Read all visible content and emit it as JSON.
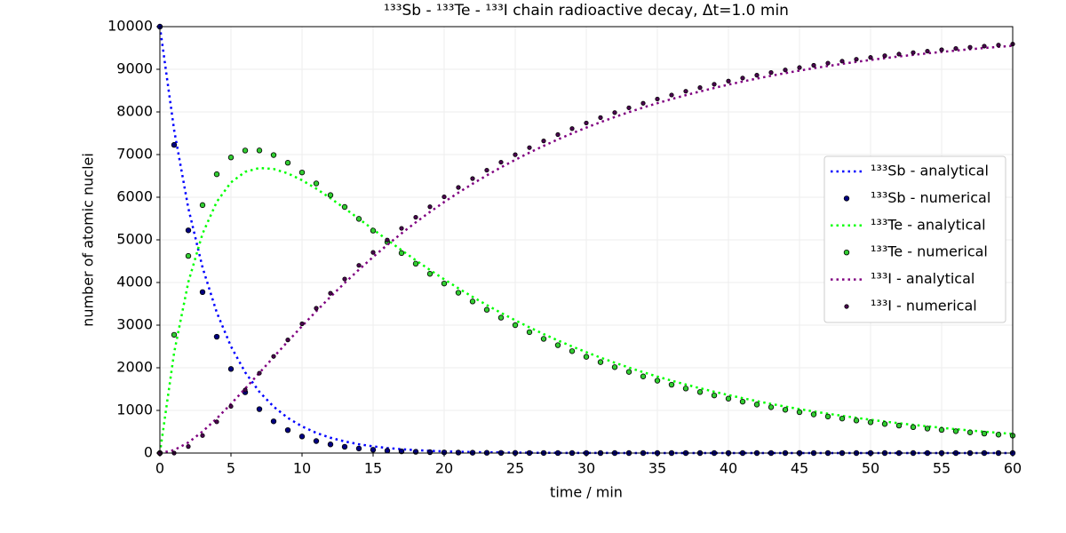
{
  "chart_data": {
    "type": "line",
    "title": "¹³³Sb - ¹³³Te - ¹³³I chain radioactive decay, Δt=1.0 min",
    "xlabel": "time / min",
    "ylabel": "number of atomic nuclei",
    "xlim": [
      0,
      60
    ],
    "ylim": [
      0,
      10000
    ],
    "xticks": [
      0,
      5,
      10,
      15,
      20,
      25,
      30,
      35,
      40,
      45,
      50,
      55,
      60
    ],
    "yticks": [
      0,
      1000,
      2000,
      3000,
      4000,
      5000,
      6000,
      7000,
      8000,
      9000,
      10000
    ],
    "grid": true,
    "legend": "right",
    "x": [
      0,
      1,
      2,
      3,
      4,
      5,
      6,
      7,
      8,
      9,
      10,
      11,
      12,
      13,
      14,
      15,
      16,
      17,
      18,
      19,
      20,
      21,
      22,
      23,
      24,
      25,
      26,
      27,
      28,
      29,
      30,
      31,
      32,
      33,
      34,
      35,
      36,
      37,
      38,
      39,
      40,
      41,
      42,
      43,
      44,
      45,
      46,
      47,
      48,
      49,
      50,
      51,
      52,
      53,
      54,
      55,
      56,
      57,
      58,
      59,
      60
    ],
    "series": [
      {
        "name": "¹³³Sb - analytical",
        "kind": "line",
        "color": "#0000ff",
        "values": [
          10000,
          7578,
          5743,
          4352,
          3298,
          2500,
          1894,
          1435,
          1088,
          824,
          625,
          473,
          359,
          272,
          206,
          156,
          118,
          90,
          68,
          52,
          39,
          30,
          22,
          17,
          13,
          10,
          7,
          6,
          4,
          3,
          2,
          2,
          1,
          1,
          1,
          1,
          0,
          0,
          0,
          0,
          0,
          0,
          0,
          0,
          0,
          0,
          0,
          0,
          0,
          0,
          0,
          0,
          0,
          0,
          0,
          0,
          0,
          0,
          0,
          0,
          0
        ]
      },
      {
        "name": "¹³³Sb - numerical",
        "kind": "scatter",
        "color": "#000080",
        "values": [
          10000,
          7227,
          5223,
          3775,
          2728,
          1972,
          1425,
          1030,
          744,
          538,
          389,
          281,
          203,
          147,
          106,
          77,
          55,
          40,
          29,
          21,
          15,
          11,
          8,
          6,
          4,
          3,
          2,
          2,
          1,
          1,
          1,
          0,
          0,
          0,
          0,
          0,
          0,
          0,
          0,
          0,
          0,
          0,
          0,
          0,
          0,
          0,
          0,
          0,
          0,
          0,
          0,
          0,
          0,
          0,
          0,
          0,
          0,
          0,
          0,
          0,
          0
        ]
      },
      {
        "name": "¹³³Te - analytical",
        "kind": "line",
        "color": "#00ff00",
        "values": [
          0,
          2353,
          4009,
          5144,
          5891,
          6348,
          6595,
          6685,
          6662,
          6559,
          6398,
          6201,
          5977,
          5739,
          5494,
          5246,
          5000,
          4758,
          4522,
          4294,
          4075,
          3864,
          3663,
          3471,
          3287,
          3113,
          2948,
          2790,
          2641,
          2500,
          2366,
          2238,
          2119,
          2004,
          1896,
          1794,
          1698,
          1607,
          1520,
          1438,
          1360,
          1287,
          1218,
          1152,
          1090,
          1031,
          975,
          923,
          873,
          826,
          781,
          739,
          699,
          662,
          626,
          592,
          560,
          530,
          501,
          474,
          449
        ]
      },
      {
        "name": "¹³³Te - numerical",
        "kind": "scatter",
        "color": "#32cd32",
        "values": [
          0,
          2773,
          4623,
          5815,
          6539,
          6933,
          7095,
          7097,
          6989,
          6808,
          6580,
          6323,
          6050,
          5771,
          5492,
          5217,
          4949,
          4690,
          4441,
          4203,
          3976,
          3760,
          3555,
          3360,
          3175,
          3000,
          2835,
          2678,
          2530,
          2390,
          2258,
          2133,
          2015,
          1903,
          1797,
          1697,
          1603,
          1514,
          1430,
          1351,
          1276,
          1205,
          1138,
          1075,
          1015,
          959,
          906,
          856,
          809,
          764,
          722,
          682,
          644,
          608,
          574,
          542,
          512,
          484,
          457,
          432,
          408
        ]
      },
      {
        "name": "¹³³I - analytical",
        "kind": "line",
        "color": "#800080",
        "values": [
          0,
          69,
          248,
          504,
          811,
          1152,
          1511,
          1880,
          2250,
          2617,
          2977,
          3326,
          3664,
          3989,
          4300,
          4598,
          4882,
          5152,
          5410,
          5654,
          5886,
          6106,
          6315,
          6512,
          6700,
          6877,
          7045,
          7204,
          7355,
          7497,
          7632,
          7760,
          7880,
          7995,
          8103,
          8205,
          8302,
          8393,
          8480,
          8562,
          8640,
          8713,
          8782,
          8848,
          8910,
          8969,
          9025,
          9077,
          9127,
          9174,
          9219,
          9261,
          9301,
          9338,
          9374,
          9408,
          9440,
          9470,
          9499,
          9526,
          9551
        ]
      },
      {
        "name": "¹³³I - numerical",
        "kind": "scatter",
        "color": "#4b0050",
        "values": [
          0,
          0,
          154,
          410,
          733,
          1095,
          1480,
          1873,
          2267,
          2654,
          3031,
          3396,
          3747,
          4082,
          4402,
          4706,
          4996,
          5270,
          5530,
          5776,
          6009,
          6229,
          6437,
          6634,
          6821,
          6997,
          7163,
          7320,
          7469,
          7609,
          7741,
          7867,
          7985,
          8097,
          8203,
          8303,
          8397,
          8486,
          8570,
          8649,
          8724,
          8795,
          8862,
          8925,
          8985,
          9041,
          9094,
          9144,
          9191,
          9236,
          9278,
          9318,
          9356,
          9392,
          9426,
          9458,
          9488,
          9516,
          9543,
          9568,
          9592
        ]
      }
    ]
  }
}
